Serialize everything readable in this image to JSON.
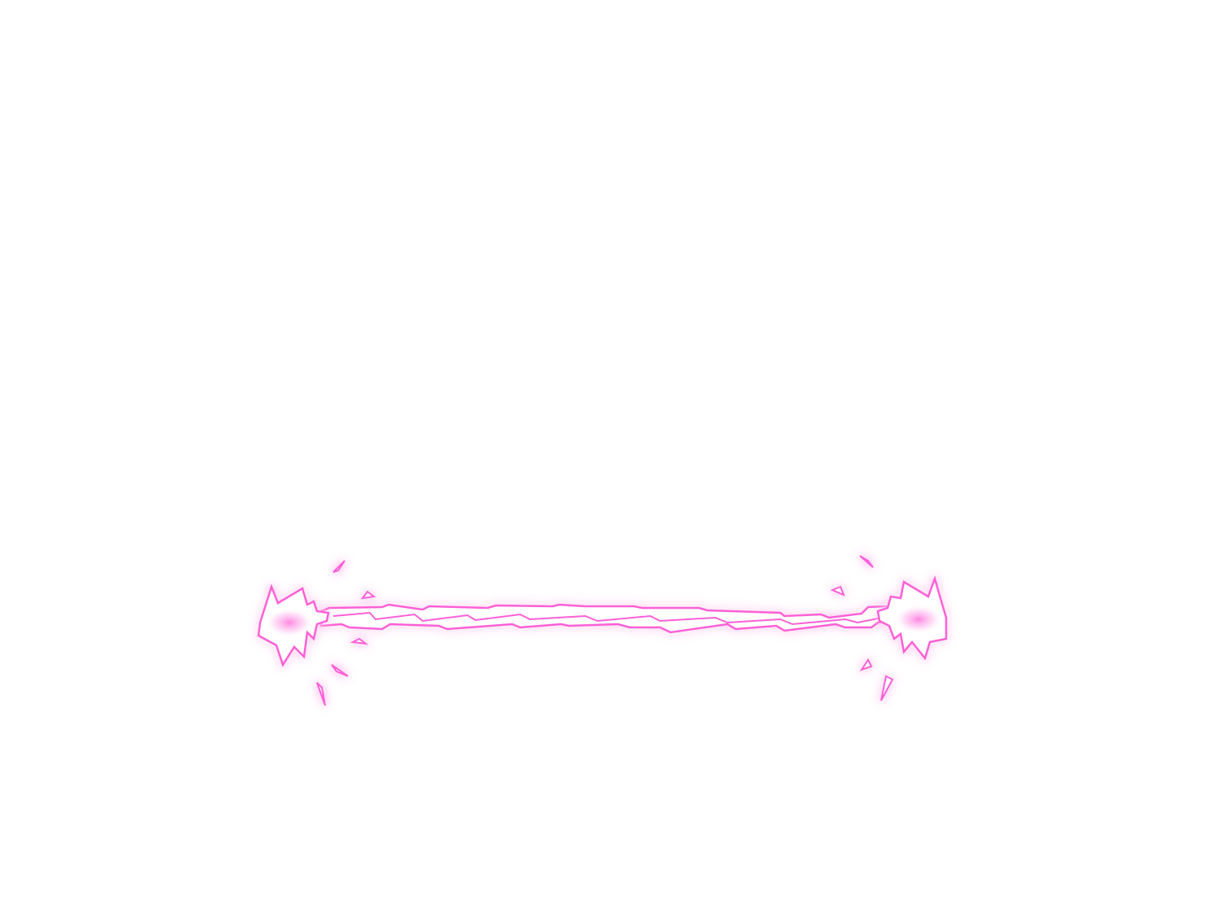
{
  "scene": {
    "background_color": "#ffffff",
    "effect_name": "lightning-beam",
    "effect_color": "#ff5fd6",
    "glow_color": "#ffb3ec",
    "core_color": "#ffffff"
  },
  "icons": {
    "left_burst": "spark-burst-icon",
    "right_burst": "spark-burst-icon",
    "shards": "spark-shard-icon"
  }
}
